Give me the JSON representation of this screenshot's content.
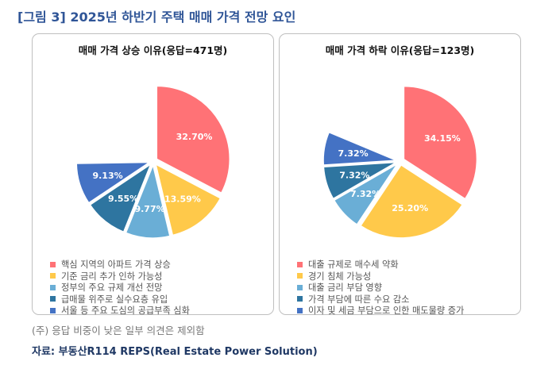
{
  "figure_title": "[그림 3] 2025년 하반기 주택 매매 가격 전망 요인",
  "note": "(주) 응답 비중이 낮은 일부 의견은 제외함",
  "source": "자료: 부동산R114 REPS(Real Estate Power Solution)",
  "chart_data": [
    {
      "type": "pie",
      "title": "매매 가격 상승 이유(응답=471명)",
      "series": [
        {
          "categories": [
            "핵심 지역의 아파트 가격 상승",
            "기준 금리 추가 인하 가능성",
            "정부의 주요 규제 개선 전망",
            "급매물 위주로 실수요층 유입",
            "서울 등 주요 도심의 공급부족 심화"
          ],
          "values": [
            32.7,
            13.59,
            9.77,
            9.55,
            9.13
          ],
          "labels": [
            "32.70%",
            "13.59%",
            "9.77%",
            "9.55%",
            "9.13%"
          ],
          "colors": [
            "#ff7276",
            "#ffc94a",
            "#6aaed6",
            "#2e75a0",
            "#4472c4"
          ]
        }
      ],
      "legend_position": "bottom"
    },
    {
      "type": "pie",
      "title": "매매 가격 하락 이유(응답=123명)",
      "series": [
        {
          "categories": [
            "대출 규제로 매수세 약화",
            "경기 침체 가능성",
            "대출 금리 부담 영향",
            "가격 부담에 따른 수요 감소",
            "이자 및 세금 부담으로 인한 매도물량 증가"
          ],
          "values": [
            34.15,
            25.2,
            7.32,
            7.32,
            7.32
          ],
          "labels": [
            "34.15%",
            "25.20%",
            "7.32%",
            "7.32%",
            "7.32%"
          ],
          "colors": [
            "#ff7276",
            "#ffc94a",
            "#6aaed6",
            "#2e75a0",
            "#4472c4"
          ]
        }
      ],
      "legend_position": "bottom"
    }
  ]
}
